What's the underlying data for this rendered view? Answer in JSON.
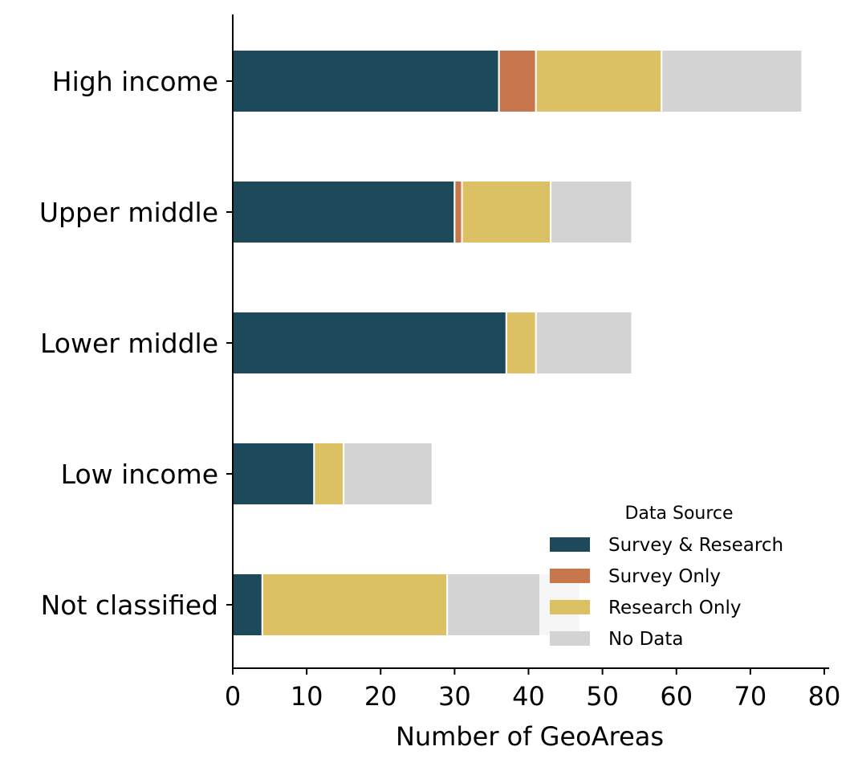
{
  "chart_data": {
    "type": "bar",
    "orientation": "horizontal",
    "stacked": true,
    "categories": [
      "High income",
      "Upper middle",
      "Lower middle",
      "Low income",
      "Not classified"
    ],
    "series": [
      {
        "name": "Survey & Research",
        "color": "#1c4a5a",
        "values": [
          36,
          30,
          37,
          11,
          4
        ]
      },
      {
        "name": "Survey Only",
        "color": "#c8774c",
        "values": [
          5,
          1,
          0,
          0,
          0
        ]
      },
      {
        "name": "Research Only",
        "color": "#dbc163",
        "values": [
          17,
          12,
          4,
          4,
          25
        ]
      },
      {
        "name": "No Data",
        "color": "#d3d3d3",
        "values": [
          19,
          11,
          13,
          12,
          18
        ]
      }
    ],
    "xlabel": "Number of GeoAreas",
    "ylabel": "",
    "xlim": [
      0,
      80
    ],
    "xticks": [
      0,
      10,
      20,
      30,
      40,
      50,
      60,
      70,
      80
    ],
    "grid": false,
    "legend": {
      "title": "Data Source",
      "placement": "lower-right"
    }
  }
}
